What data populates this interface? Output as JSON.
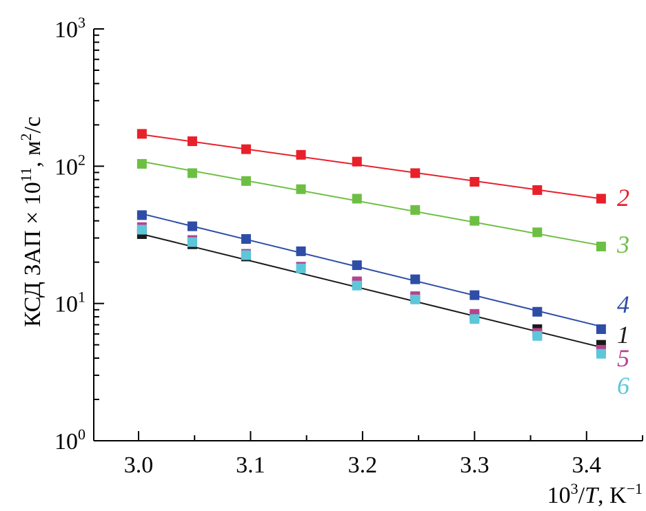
{
  "chart_data": {
    "type": "scatter",
    "xlabel_parts": {
      "base": "10",
      "sup": "3",
      "mid": "/",
      "var": "T",
      "unit": ", K",
      "unit_sup": "−1"
    },
    "ylabel_parts": {
      "main": "КСД ЗАП × 10",
      "sup": "11",
      "tail": ", м",
      "unit_sup": "2",
      "unit_tail": "/с"
    },
    "xlim": [
      2.96,
      3.45
    ],
    "ylim": [
      1,
      1000
    ],
    "yscale": "log",
    "x_ticks": [
      3.0,
      3.1,
      3.2,
      3.3,
      3.4
    ],
    "x_tick_labels": [
      "3.0",
      "3.1",
      "3.2",
      "3.3",
      "3.4"
    ],
    "y_ticks": [
      {
        "value": 1,
        "base": "10",
        "exp": "0"
      },
      {
        "value": 10,
        "base": "10",
        "exp": "1"
      },
      {
        "value": 100,
        "base": "10",
        "exp": "2"
      },
      {
        "value": 1000,
        "base": "10",
        "exp": "3"
      }
    ],
    "grid": false,
    "legend": "none",
    "x": [
      3.003,
      3.048,
      3.096,
      3.145,
      3.195,
      3.247,
      3.3,
      3.356,
      3.413
    ],
    "series": [
      {
        "label": "2",
        "color": "#e8202a",
        "values": [
          172,
          152,
          133,
          121,
          108,
          89,
          77,
          67,
          58
        ],
        "fit": [
          170,
          58
        ]
      },
      {
        "label": "3",
        "color": "#6dbf44",
        "values": [
          104,
          89,
          78,
          68,
          58,
          48,
          40,
          33,
          26
        ],
        "fit": [
          108,
          26.5
        ]
      },
      {
        "label": "4",
        "color": "#2e4da6",
        "values": [
          44,
          36.5,
          29.5,
          24,
          19,
          15,
          11.5,
          8.7,
          6.5
        ],
        "fit": [
          45,
          6.8
        ]
      },
      {
        "label": "1",
        "color": "#1a1a1a",
        "values": [
          32,
          27,
          22,
          18.5,
          14,
          11,
          8,
          6.5,
          5
        ],
        "fit": [
          32,
          4.8
        ]
      },
      {
        "label": "5",
        "color": "#b8428f",
        "values": [
          36,
          29,
          23,
          18.5,
          14.5,
          11.3,
          8.4,
          6.1,
          4.6
        ],
        "fit": null
      },
      {
        "label": "6",
        "color": "#5dc7da",
        "values": [
          34.5,
          28,
          22.5,
          18,
          13.5,
          10.7,
          7.7,
          5.8,
          4.3
        ],
        "fit": null
      }
    ]
  }
}
